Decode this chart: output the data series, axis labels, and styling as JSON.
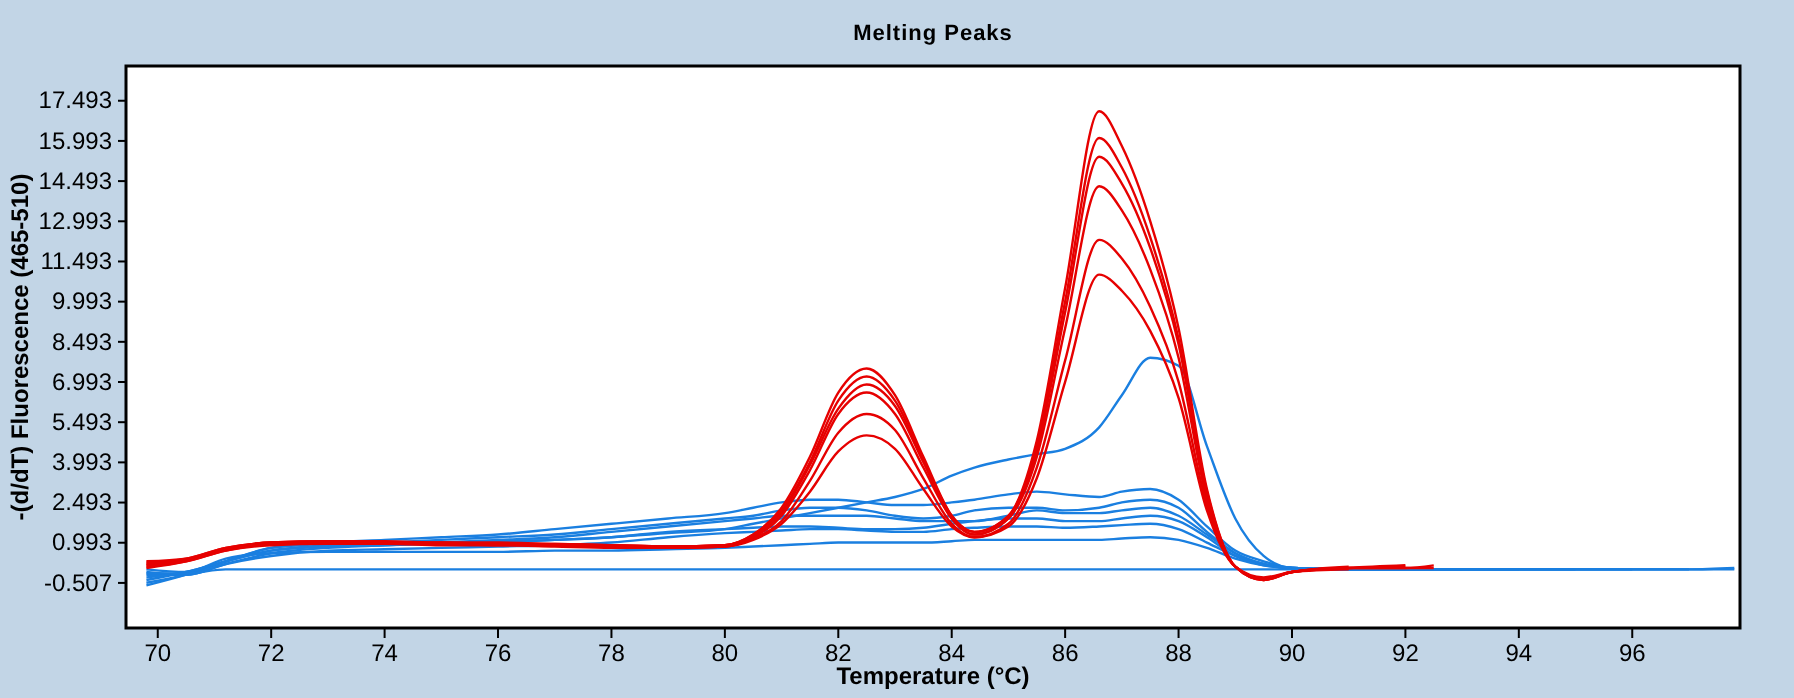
{
  "chart_data": {
    "type": "line",
    "title": "Melting Peaks",
    "xlabel": "Temperature (°C)",
    "ylabel": "-(d/dT) Fluorescence (465-510)",
    "xlim": [
      69.44,
      97.9
    ],
    "xticks": [
      70,
      72,
      74,
      76,
      78,
      80,
      82,
      84,
      86,
      88,
      90,
      92,
      94,
      96
    ],
    "ylim": [
      -2.19,
      18.79
    ],
    "yticks": [
      -0.507,
      0.993,
      2.493,
      3.993,
      5.493,
      6.993,
      8.493,
      9.993,
      11.493,
      12.993,
      14.493,
      15.993,
      17.493
    ],
    "grid": false,
    "marker": "none",
    "line_style": "solid",
    "x": [
      69.8,
      70.5,
      71.2,
      72,
      73,
      74,
      75,
      76,
      77,
      78,
      79,
      80,
      80.5,
      81,
      81.5,
      82,
      82.5,
      83,
      83.5,
      84,
      84.4,
      85,
      85.5,
      86,
      86.6,
      87,
      87.5,
      88,
      88.5,
      89,
      89.5,
      90,
      91,
      92,
      92.5,
      93,
      94,
      95,
      96,
      97,
      97.8
    ],
    "series": [
      {
        "color": "#1a7fe0",
        "values": [
          -0.6,
          -0.2,
          0.3,
          0.8,
          0.95,
          1.0,
          1.0,
          1.05,
          1.1,
          1.2,
          1.35,
          1.5,
          1.7,
          1.9,
          2.1,
          2.3,
          2.5,
          2.7,
          3.0,
          3.5,
          3.8,
          4.1,
          4.3,
          4.5,
          5.3,
          6.5,
          7.9,
          7.6,
          4.6,
          1.9,
          0.5,
          0.05,
          0,
          0,
          0,
          0,
          0,
          0,
          0,
          0,
          0
        ]
      },
      {
        "color": "#1a7fe0",
        "values": [
          -0.5,
          -0.2,
          0.3,
          0.8,
          1.0,
          1.1,
          1.2,
          1.3,
          1.5,
          1.7,
          1.9,
          2.1,
          2.3,
          2.5,
          2.6,
          2.6,
          2.5,
          2.4,
          2.4,
          2.5,
          2.6,
          2.8,
          2.9,
          2.8,
          2.7,
          2.9,
          3.0,
          2.6,
          1.6,
          0.7,
          0.3,
          0.05,
          0,
          0,
          0,
          0,
          0,
          0,
          0,
          0,
          null
        ]
      },
      {
        "color": "#1a7fe0",
        "values": [
          -0.4,
          -0.1,
          0.3,
          0.7,
          0.9,
          1.0,
          1.1,
          1.2,
          1.3,
          1.5,
          1.7,
          1.9,
          2.0,
          2.2,
          2.3,
          2.3,
          2.2,
          2.0,
          1.9,
          2.0,
          2.2,
          2.3,
          2.3,
          2.2,
          2.3,
          2.5,
          2.6,
          2.3,
          1.4,
          0.6,
          0.2,
          0.05,
          0,
          0,
          0,
          0,
          0,
          0,
          0,
          null,
          null
        ]
      },
      {
        "color": "#1a7fe0",
        "values": [
          -0.3,
          -0.1,
          0.3,
          0.7,
          0.85,
          0.9,
          1.0,
          1.1,
          1.2,
          1.4,
          1.6,
          1.8,
          1.9,
          2.0,
          2.0,
          2.0,
          2.0,
          1.9,
          1.8,
          1.8,
          1.8,
          2.0,
          2.2,
          2.1,
          2.1,
          2.2,
          2.3,
          2.0,
          1.3,
          0.6,
          0.2,
          0.05,
          0,
          0,
          0,
          0,
          0,
          0,
          null,
          null,
          null
        ]
      },
      {
        "color": "#1a7fe0",
        "values": [
          -0.2,
          -0.2,
          0.2,
          0.6,
          0.8,
          0.9,
          0.95,
          1.0,
          1.1,
          1.2,
          1.4,
          1.5,
          1.55,
          1.6,
          1.6,
          1.55,
          1.5,
          1.5,
          1.55,
          1.7,
          1.8,
          1.9,
          1.9,
          1.8,
          1.8,
          1.9,
          2.0,
          1.8,
          1.2,
          0.5,
          0.2,
          0.05,
          0,
          0,
          0,
          0,
          0,
          null,
          null,
          null,
          null
        ]
      },
      {
        "color": "#1a7fe0",
        "values": [
          -0.1,
          -0.2,
          0.2,
          0.5,
          0.7,
          0.75,
          0.8,
          0.85,
          0.9,
          1.0,
          1.2,
          1.35,
          1.4,
          1.45,
          1.5,
          1.5,
          1.45,
          1.4,
          1.4,
          1.5,
          1.55,
          1.6,
          1.6,
          1.55,
          1.6,
          1.65,
          1.7,
          1.5,
          1.0,
          0.5,
          0.15,
          0.05,
          0,
          0,
          0,
          0,
          null,
          null,
          null,
          null,
          null
        ]
      },
      {
        "color": "#1a7fe0",
        "values": [
          0.0,
          -0.1,
          0.4,
          0.6,
          0.65,
          0.65,
          0.65,
          0.65,
          0.7,
          0.7,
          0.75,
          0.8,
          0.85,
          0.9,
          0.95,
          1.0,
          1.0,
          1.0,
          1.0,
          1.05,
          1.1,
          1.1,
          1.1,
          1.1,
          1.1,
          1.15,
          1.2,
          1.1,
          0.8,
          0.4,
          0.15,
          0.05,
          0,
          0,
          0,
          null,
          null,
          null,
          null,
          null,
          null
        ]
      },
      {
        "color": "#1a7fe0",
        "values": [
          -0.15,
          -0.15,
          0,
          0,
          0,
          0,
          0,
          0,
          0,
          0,
          0,
          0,
          0,
          0,
          0,
          0,
          0,
          0,
          0,
          0,
          0,
          0,
          0,
          0,
          0,
          0,
          0,
          0,
          0,
          0,
          0,
          0,
          0,
          0,
          0,
          0,
          0,
          0,
          0,
          0,
          0.05
        ]
      },
      {
        "color": "#e60000",
        "values": [
          0.3,
          0.4,
          0.8,
          1.0,
          1.05,
          1.05,
          1.0,
          1.0,
          0.95,
          0.9,
          0.85,
          0.9,
          1.3,
          2.3,
          4.2,
          6.6,
          7.5,
          6.5,
          4.2,
          2.0,
          1.4,
          2.0,
          4.8,
          10.5,
          17.1,
          15.8,
          13.0,
          9.0,
          3.0,
          0.1,
          -0.4,
          -0.1,
          0.05,
          0.05,
          0.05,
          null,
          null,
          null,
          null,
          null,
          null
        ]
      },
      {
        "color": "#e60000",
        "values": [
          0.25,
          0.4,
          0.8,
          1.0,
          1.05,
          1.0,
          1.0,
          0.95,
          0.95,
          0.9,
          0.85,
          0.9,
          1.3,
          2.2,
          4.0,
          6.3,
          7.2,
          6.3,
          4.1,
          2.0,
          1.4,
          2.0,
          4.6,
          10.0,
          16.1,
          15.0,
          12.4,
          8.6,
          2.9,
          0.1,
          -0.4,
          -0.1,
          0.05,
          0.1,
          null,
          null,
          null,
          null,
          null,
          null,
          null
        ]
      },
      {
        "color": "#e60000",
        "values": [
          0.2,
          0.35,
          0.75,
          1.0,
          1.0,
          1.0,
          0.95,
          0.95,
          0.9,
          0.9,
          0.85,
          0.9,
          1.25,
          2.1,
          3.9,
          6.0,
          6.9,
          6.1,
          4.0,
          1.9,
          1.3,
          1.9,
          4.4,
          9.6,
          15.4,
          14.4,
          12.0,
          8.4,
          2.8,
          0.1,
          -0.4,
          -0.1,
          0.1,
          null,
          null,
          null,
          null,
          null,
          null,
          null,
          null
        ]
      },
      {
        "color": "#e60000",
        "values": [
          0.15,
          0.35,
          0.75,
          0.95,
          1.0,
          1.0,
          0.95,
          0.95,
          0.9,
          0.85,
          0.8,
          0.85,
          1.2,
          2.0,
          3.7,
          5.8,
          6.6,
          5.8,
          3.8,
          1.9,
          1.3,
          1.9,
          4.2,
          9.0,
          14.3,
          13.4,
          11.2,
          7.9,
          2.6,
          0.1,
          -0.35,
          -0.1,
          0.05,
          0.05,
          0.15,
          null,
          null,
          null,
          null,
          null,
          null
        ]
      },
      {
        "color": "#e60000",
        "values": [
          0.1,
          0.3,
          0.7,
          0.95,
          1.0,
          0.95,
          0.95,
          0.9,
          0.9,
          0.85,
          0.8,
          0.85,
          1.15,
          1.8,
          3.3,
          5.1,
          5.8,
          5.2,
          3.4,
          1.7,
          1.2,
          1.7,
          3.8,
          7.8,
          12.3,
          11.6,
          9.8,
          7.0,
          2.4,
          0.1,
          -0.35,
          -0.1,
          0.05,
          0.15,
          null,
          null,
          null,
          null,
          null,
          null,
          null
        ]
      },
      {
        "color": "#e60000",
        "values": [
          0.05,
          0.3,
          0.7,
          0.9,
          0.95,
          0.95,
          0.9,
          0.9,
          0.85,
          0.8,
          0.8,
          0.85,
          1.1,
          1.7,
          2.9,
          4.4,
          5.0,
          4.5,
          3.0,
          1.6,
          1.2,
          1.6,
          3.4,
          7.0,
          11.0,
          10.4,
          8.9,
          6.4,
          2.2,
          0.1,
          -0.3,
          -0.1,
          0.0,
          null,
          null,
          null,
          null,
          null,
          null,
          null,
          null
        ]
      }
    ]
  }
}
